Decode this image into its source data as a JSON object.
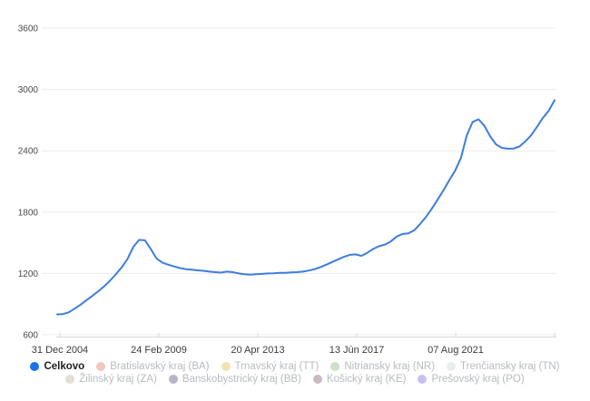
{
  "chart_data": {
    "type": "line",
    "title": "",
    "grid": true,
    "legend_position": "bottom",
    "x_axis": {
      "tick_labels": [
        "31 Dec 2004",
        "24 Feb 2009",
        "20 Apr 2013",
        "13 Jún 2017",
        "07 Aug 2021"
      ]
    },
    "y_axis": {
      "ticks": [
        600,
        1200,
        1800,
        2400,
        3000,
        3600
      ],
      "min": 600,
      "max": 3600
    },
    "series": [
      {
        "name": "Celkovo",
        "color": "#3d7dde",
        "dates": [
          "2004-Q4",
          "2005-Q1",
          "2005-Q2",
          "2005-Q3",
          "2005-Q4",
          "2006-Q1",
          "2006-Q2",
          "2006-Q3",
          "2006-Q4",
          "2007-Q1",
          "2007-Q2",
          "2007-Q3",
          "2007-Q4",
          "2008-Q1",
          "2008-Q2",
          "2008-Q3",
          "2008-Q4",
          "2009-Q1",
          "2009-Q2",
          "2009-Q3",
          "2009-Q4",
          "2010-Q1",
          "2010-Q2",
          "2010-Q3",
          "2010-Q4",
          "2011-Q1",
          "2011-Q2",
          "2011-Q3",
          "2011-Q4",
          "2012-Q1",
          "2012-Q2",
          "2012-Q3",
          "2012-Q4",
          "2013-Q1",
          "2013-Q2",
          "2013-Q3",
          "2013-Q4",
          "2014-Q1",
          "2014-Q2",
          "2014-Q3",
          "2014-Q4",
          "2015-Q1",
          "2015-Q2",
          "2015-Q3",
          "2015-Q4",
          "2016-Q1",
          "2016-Q2",
          "2016-Q3",
          "2016-Q4",
          "2017-Q1",
          "2017-Q2",
          "2017-Q3",
          "2017-Q4",
          "2018-Q1",
          "2018-Q2",
          "2018-Q3",
          "2018-Q4",
          "2019-Q1",
          "2019-Q2",
          "2019-Q3",
          "2019-Q4",
          "2020-Q1",
          "2020-Q2",
          "2020-Q3",
          "2020-Q4",
          "2021-Q1",
          "2021-Q2",
          "2021-Q3",
          "2021-Q4",
          "2022-Q1",
          "2022-Q2",
          "2022-Q3",
          "2022-Q4",
          "2023-Q1",
          "2023-Q2",
          "2023-Q3",
          "2023-Q4",
          "2024-Q1",
          "2024-Q2",
          "2024-Q3",
          "2024-Q4",
          "2025-Q1",
          "2025-Q2",
          "2025-Q3",
          "2025-Q4",
          "2026-Q1"
        ],
        "values": [
          800,
          802,
          820,
          856,
          895,
          938,
          980,
          1025,
          1072,
          1128,
          1190,
          1258,
          1340,
          1458,
          1528,
          1524,
          1438,
          1345,
          1305,
          1285,
          1268,
          1252,
          1242,
          1236,
          1230,
          1226,
          1218,
          1212,
          1208,
          1218,
          1212,
          1200,
          1192,
          1188,
          1192,
          1196,
          1200,
          1201,
          1205,
          1206,
          1210,
          1212,
          1218,
          1228,
          1242,
          1262,
          1286,
          1312,
          1338,
          1362,
          1382,
          1386,
          1372,
          1402,
          1440,
          1466,
          1482,
          1512,
          1560,
          1586,
          1592,
          1622,
          1682,
          1752,
          1832,
          1922,
          2012,
          2112,
          2205,
          2330,
          2552,
          2682,
          2708,
          2645,
          2540,
          2462,
          2428,
          2420,
          2422,
          2442,
          2492,
          2552,
          2635,
          2722,
          2792,
          2895
        ]
      }
    ]
  },
  "legend": {
    "rows": [
      {
        "items": [
          {
            "label": "Celkovo",
            "color": "#1a73e8",
            "active": true
          },
          {
            "label": "Bratislavský kraj (BA)",
            "color": "#f0c6c0",
            "active": false
          },
          {
            "label": "Trnavský kraj (TT)",
            "color": "#f1e3b3",
            "active": false
          },
          {
            "label": "Nitriansky kraj (NR)",
            "color": "#cbe2c4",
            "active": false
          },
          {
            "label": "Trenčiansky kraj (TN)",
            "color": "#e9eeee",
            "active": false
          }
        ]
      },
      {
        "items": [
          {
            "label": "Žilinský kraj (ZA)",
            "color": "#e3ded6",
            "active": false
          },
          {
            "label": "Banskobystrický kraj (BB)",
            "color": "#b8b3ca",
            "active": false
          },
          {
            "label": "Košický kraj (KE)",
            "color": "#c7bac0",
            "active": false
          },
          {
            "label": "Prešovský kraj (PO)",
            "color": "#c6c1f0",
            "active": false
          }
        ]
      }
    ]
  },
  "colors": {
    "line": "#3d7dde",
    "gridline": "#ececec",
    "axis": "#d9d9d9",
    "y_label": "#4a4a4a",
    "x_label": "#3c3c3c",
    "inactive_legend_text": "#b7bbc0",
    "active_legend_text": "#1f1f1f"
  }
}
